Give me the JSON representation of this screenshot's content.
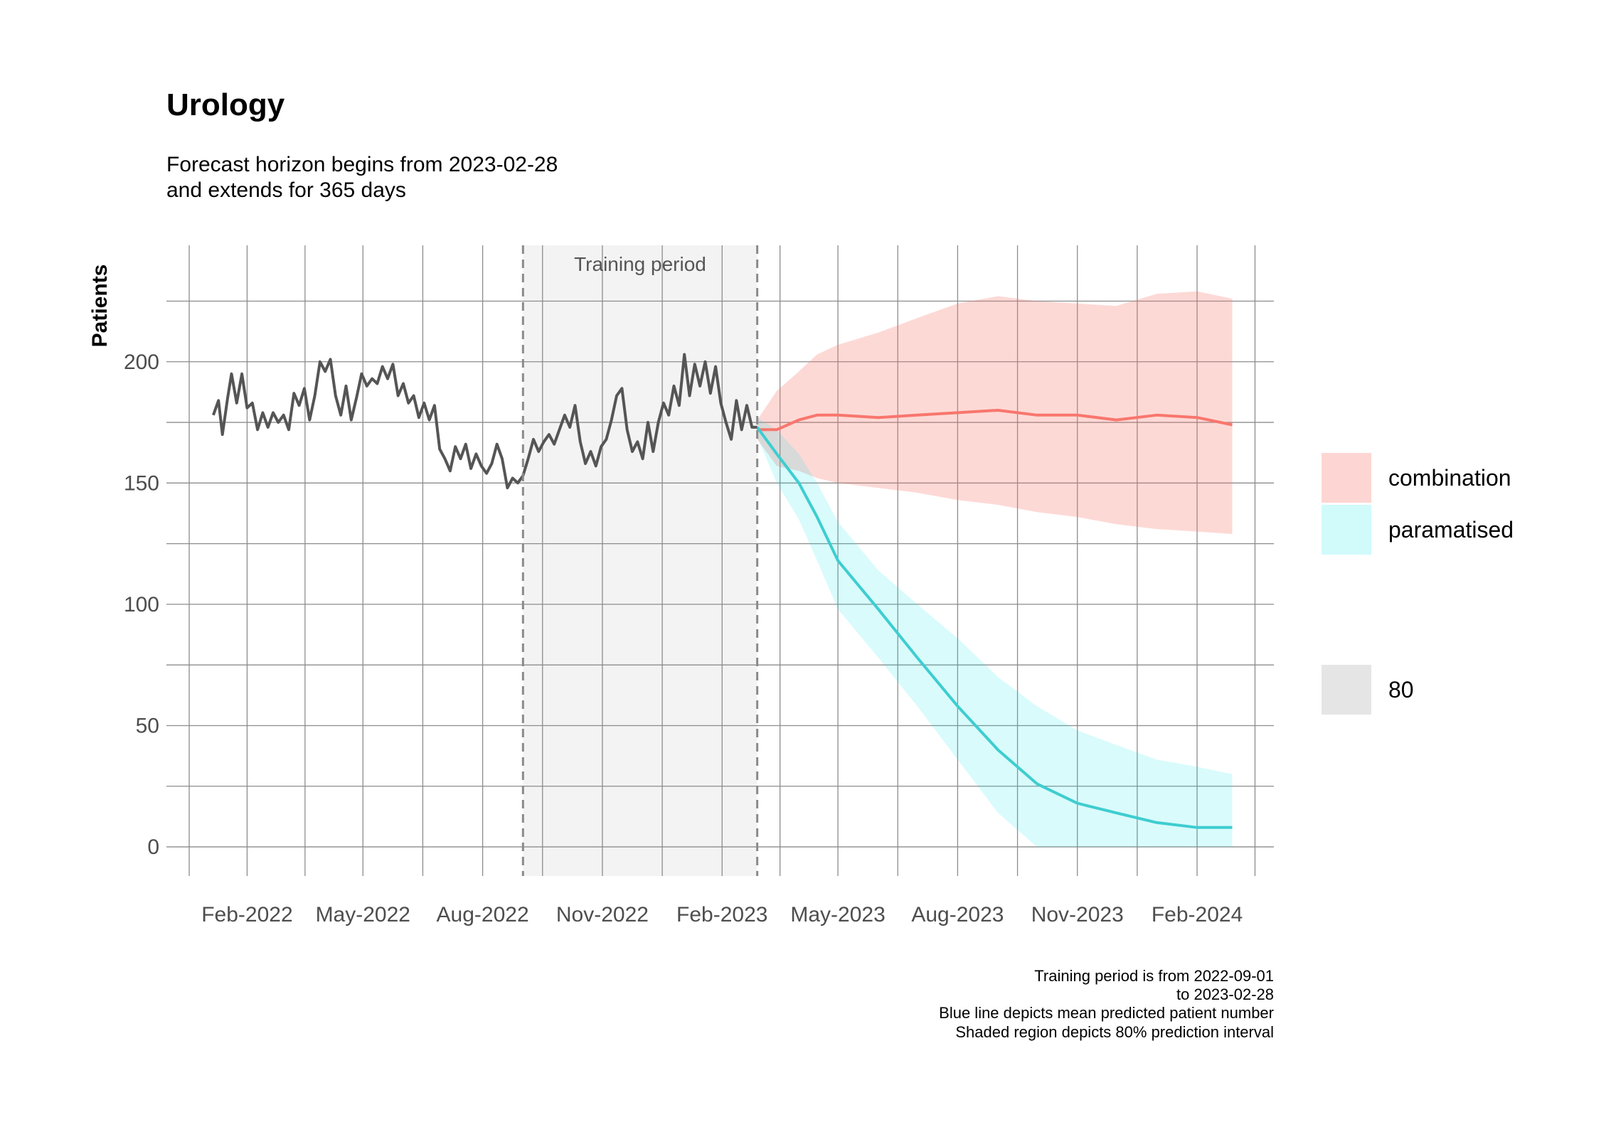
{
  "chart_data": {
    "type": "line",
    "title": "Urology",
    "subtitle": [
      "Forecast horizon begins from 2023-02-28",
      "and extends for 365 days"
    ],
    "ylabel": "Patients",
    "xlabel": "",
    "xlim": [
      "2021-12-01",
      "2024-03-31"
    ],
    "ylim": [
      -12,
      248
    ],
    "y_ticks": [
      0,
      50,
      100,
      150,
      200
    ],
    "x_ticks": [
      {
        "date": "2022-02-01",
        "label": "Feb-2022"
      },
      {
        "date": "2022-05-01",
        "label": "May-2022"
      },
      {
        "date": "2022-08-01",
        "label": "Aug-2022"
      },
      {
        "date": "2022-11-01",
        "label": "Nov-2022"
      },
      {
        "date": "2023-02-01",
        "label": "Feb-2023"
      },
      {
        "date": "2023-05-01",
        "label": "May-2023"
      },
      {
        "date": "2023-08-01",
        "label": "Aug-2023"
      },
      {
        "date": "2023-11-01",
        "label": "Nov-2023"
      },
      {
        "date": "2024-02-01",
        "label": "Feb-2024"
      }
    ],
    "grid": true,
    "training_period": {
      "start": "2022-09-01",
      "end": "2023-02-28",
      "label": "Training period"
    },
    "observed": {
      "color": "#555555",
      "points": [
        [
          "2022-01-06",
          178
        ],
        [
          "2022-01-10",
          184
        ],
        [
          "2022-01-13",
          170
        ],
        [
          "2022-01-17",
          185
        ],
        [
          "2022-01-20",
          195
        ],
        [
          "2022-01-24",
          183
        ],
        [
          "2022-01-28",
          195
        ],
        [
          "2022-02-01",
          181
        ],
        [
          "2022-02-05",
          183
        ],
        [
          "2022-02-09",
          172
        ],
        [
          "2022-02-13",
          179
        ],
        [
          "2022-02-17",
          173
        ],
        [
          "2022-02-21",
          179
        ],
        [
          "2022-02-25",
          175
        ],
        [
          "2022-03-01",
          178
        ],
        [
          "2022-03-05",
          172
        ],
        [
          "2022-03-09",
          187
        ],
        [
          "2022-03-13",
          182
        ],
        [
          "2022-03-17",
          189
        ],
        [
          "2022-03-21",
          176
        ],
        [
          "2022-03-25",
          186
        ],
        [
          "2022-03-29",
          200
        ],
        [
          "2022-04-02",
          196
        ],
        [
          "2022-04-06",
          201
        ],
        [
          "2022-04-10",
          186
        ],
        [
          "2022-04-14",
          178
        ],
        [
          "2022-04-18",
          190
        ],
        [
          "2022-04-22",
          176
        ],
        [
          "2022-04-26",
          185
        ],
        [
          "2022-04-30",
          195
        ],
        [
          "2022-05-04",
          190
        ],
        [
          "2022-05-08",
          193
        ],
        [
          "2022-05-12",
          191
        ],
        [
          "2022-05-16",
          198
        ],
        [
          "2022-05-20",
          193
        ],
        [
          "2022-05-24",
          199
        ],
        [
          "2022-05-28",
          186
        ],
        [
          "2022-06-01",
          191
        ],
        [
          "2022-06-05",
          183
        ],
        [
          "2022-06-09",
          186
        ],
        [
          "2022-06-13",
          177
        ],
        [
          "2022-06-17",
          183
        ],
        [
          "2022-06-21",
          176
        ],
        [
          "2022-06-25",
          182
        ],
        [
          "2022-06-29",
          164
        ],
        [
          "2022-07-03",
          160
        ],
        [
          "2022-07-07",
          155
        ],
        [
          "2022-07-11",
          165
        ],
        [
          "2022-07-15",
          160
        ],
        [
          "2022-07-19",
          166
        ],
        [
          "2022-07-23",
          156
        ],
        [
          "2022-07-27",
          162
        ],
        [
          "2022-07-31",
          157
        ],
        [
          "2022-08-04",
          154
        ],
        [
          "2022-08-08",
          158
        ],
        [
          "2022-08-12",
          166
        ],
        [
          "2022-08-16",
          160
        ],
        [
          "2022-08-20",
          148
        ],
        [
          "2022-08-24",
          152
        ],
        [
          "2022-08-28",
          150
        ],
        [
          "2022-09-01",
          153
        ],
        [
          "2022-09-05",
          160
        ],
        [
          "2022-09-09",
          168
        ],
        [
          "2022-09-13",
          163
        ],
        [
          "2022-09-17",
          167
        ],
        [
          "2022-09-21",
          170
        ],
        [
          "2022-09-25",
          166
        ],
        [
          "2022-09-29",
          172
        ],
        [
          "2022-10-03",
          178
        ],
        [
          "2022-10-07",
          173
        ],
        [
          "2022-10-11",
          182
        ],
        [
          "2022-10-15",
          167
        ],
        [
          "2022-10-19",
          158
        ],
        [
          "2022-10-23",
          163
        ],
        [
          "2022-10-27",
          157
        ],
        [
          "2022-10-31",
          165
        ],
        [
          "2022-11-04",
          168
        ],
        [
          "2022-11-08",
          176
        ],
        [
          "2022-11-12",
          186
        ],
        [
          "2022-11-16",
          189
        ],
        [
          "2022-11-20",
          172
        ],
        [
          "2022-11-24",
          163
        ],
        [
          "2022-11-28",
          167
        ],
        [
          "2022-12-02",
          160
        ],
        [
          "2022-12-06",
          175
        ],
        [
          "2022-12-10",
          163
        ],
        [
          "2022-12-14",
          175
        ],
        [
          "2022-12-18",
          183
        ],
        [
          "2022-12-22",
          178
        ],
        [
          "2022-12-26",
          190
        ],
        [
          "2022-12-30",
          182
        ],
        [
          "2023-01-03",
          203
        ],
        [
          "2023-01-07",
          186
        ],
        [
          "2023-01-11",
          199
        ],
        [
          "2023-01-15",
          190
        ],
        [
          "2023-01-19",
          200
        ],
        [
          "2023-01-23",
          187
        ],
        [
          "2023-01-27",
          198
        ],
        [
          "2023-01-31",
          183
        ],
        [
          "2023-02-04",
          175
        ],
        [
          "2023-02-08",
          168
        ],
        [
          "2023-02-12",
          184
        ],
        [
          "2023-02-16",
          172
        ],
        [
          "2023-02-20",
          182
        ],
        [
          "2023-02-24",
          173
        ],
        [
          "2023-02-28",
          173
        ]
      ]
    },
    "series": [
      {
        "name": "combination",
        "color": "#f8766d",
        "fill": "#f8766d",
        "points": [
          [
            "2023-02-28",
            172,
            168,
            176
          ],
          [
            "2023-03-15",
            172,
            157,
            188
          ],
          [
            "2023-04-01",
            176,
            155,
            196
          ],
          [
            "2023-04-15",
            178,
            152,
            203
          ],
          [
            "2023-05-01",
            178,
            150,
            207
          ],
          [
            "2023-06-01",
            177,
            148,
            212
          ],
          [
            "2023-07-01",
            178,
            146,
            218
          ],
          [
            "2023-08-01",
            179,
            143,
            224
          ],
          [
            "2023-09-01",
            180,
            141,
            227
          ],
          [
            "2023-10-01",
            178,
            138,
            225
          ],
          [
            "2023-11-01",
            178,
            136,
            224
          ],
          [
            "2023-12-01",
            176,
            133,
            223
          ],
          [
            "2024-01-01",
            178,
            131,
            228
          ],
          [
            "2024-02-01",
            177,
            130,
            229
          ],
          [
            "2024-02-28",
            174,
            129,
            226
          ]
        ]
      },
      {
        "name": "paramatised",
        "color": "#3ecdd0",
        "fill": "#00e5e8",
        "points": [
          [
            "2023-02-28",
            173,
            169,
            177
          ],
          [
            "2023-03-15",
            162,
            150,
            172
          ],
          [
            "2023-04-01",
            150,
            135,
            162
          ],
          [
            "2023-04-15",
            136,
            118,
            150
          ],
          [
            "2023-05-01",
            118,
            98,
            134
          ],
          [
            "2023-06-01",
            98,
            78,
            114
          ],
          [
            "2023-07-01",
            78,
            58,
            100
          ],
          [
            "2023-08-01",
            58,
            36,
            86
          ],
          [
            "2023-09-01",
            40,
            14,
            70
          ],
          [
            "2023-10-01",
            26,
            0,
            58
          ],
          [
            "2023-11-01",
            18,
            0,
            48
          ],
          [
            "2023-12-01",
            14,
            0,
            42
          ],
          [
            "2024-01-01",
            10,
            0,
            36
          ],
          [
            "2024-02-01",
            8,
            0,
            33
          ],
          [
            "2024-02-28",
            8,
            0,
            30
          ]
        ]
      }
    ],
    "legend": {
      "position": "right",
      "items": [
        {
          "label": "combination",
          "color": "#f8766d"
        },
        {
          "label": "paramatised",
          "color": "#00e5e8"
        }
      ],
      "interval_label": "80"
    },
    "caption": [
      "Training period is from 2022-09-01",
      "to 2023-02-28",
      "Blue line depicts mean predicted patient number",
      "Shaded region depicts 80% prediction interval"
    ]
  }
}
